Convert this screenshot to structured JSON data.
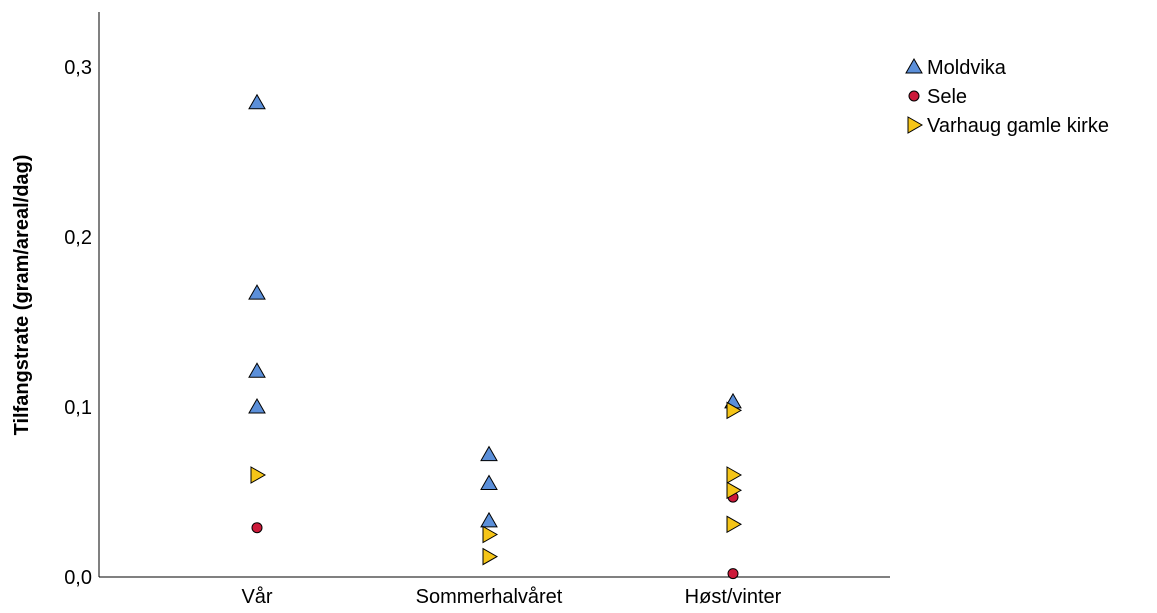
{
  "chart_data": {
    "type": "scatter",
    "title": "",
    "xlabel": "",
    "ylabel": "Tilfangstrate (gram/areal/dag)",
    "categories": [
      "Vår",
      "Sommerhalvåret",
      "Høst/vinter"
    ],
    "ylim": [
      0,
      0.335
    ],
    "yticks": [
      0.0,
      0.1,
      0.2,
      0.3
    ],
    "ytick_labels": [
      "0,0",
      "0,1",
      "0,2",
      "0,3"
    ],
    "grid": false,
    "legend_position": "top-right",
    "series": [
      {
        "name": "Moldvika",
        "marker": "triangle-up",
        "color": "#5b8fd9",
        "points": [
          {
            "category": "Vår",
            "value": 0.279
          },
          {
            "category": "Vår",
            "value": 0.167
          },
          {
            "category": "Vår",
            "value": 0.121
          },
          {
            "category": "Vår",
            "value": 0.1
          },
          {
            "category": "Sommerhalvåret",
            "value": 0.072
          },
          {
            "category": "Sommerhalvåret",
            "value": 0.055
          },
          {
            "category": "Sommerhalvåret",
            "value": 0.033
          },
          {
            "category": "Høst/vinter",
            "value": 0.103
          }
        ]
      },
      {
        "name": "Sele",
        "marker": "circle",
        "color": "#cc1a3a",
        "points": [
          {
            "category": "Vår",
            "value": 0.029
          },
          {
            "category": "Høst/vinter",
            "value": 0.047
          },
          {
            "category": "Høst/vinter",
            "value": 0.002
          }
        ]
      },
      {
        "name": "Varhaug gamle kirke",
        "marker": "triangle-right",
        "color": "#f5c518",
        "points": [
          {
            "category": "Vår",
            "value": 0.06
          },
          {
            "category": "Sommerhalvåret",
            "value": 0.025
          },
          {
            "category": "Sommerhalvåret",
            "value": 0.012
          },
          {
            "category": "Høst/vinter",
            "value": 0.098
          },
          {
            "category": "Høst/vinter",
            "value": 0.06
          },
          {
            "category": "Høst/vinter",
            "value": 0.051
          },
          {
            "category": "Høst/vinter",
            "value": 0.031
          }
        ]
      }
    ]
  }
}
